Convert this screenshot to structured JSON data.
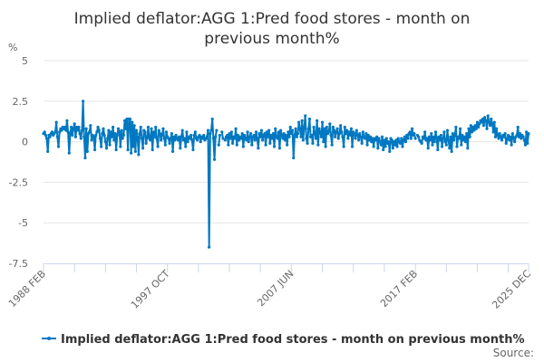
{
  "chart_data": {
    "type": "line",
    "title_lines": [
      "Implied deflator:AGG 1:Pred food stores - month on",
      "previous month%"
    ],
    "ylabel": "%",
    "ylim": [
      -7.5,
      5
    ],
    "y_ticks": [
      "5",
      "2.5",
      "0",
      "-2.5",
      "-5",
      "-7.5"
    ],
    "y_tick_values": [
      5,
      2.5,
      0,
      -2.5,
      -5,
      -7.5
    ],
    "x_start": "1988 FEB",
    "x_end": "2025 DEC",
    "frequency": "monthly",
    "x_tick_labels": [
      "1988 FEB",
      "1997 OCT",
      "2007 JUN",
      "2017 FEB",
      "2025 DEC"
    ],
    "grid": true,
    "legend_position": "bottom",
    "series": [
      {
        "name": "Implied deflator:AGG 1:Pred food stores - month on previous month%",
        "color": "#0078c1",
        "values": [
          0.5,
          0.6,
          0.4,
          0.2,
          -0.6,
          0.4,
          0.3,
          0.5,
          0.6,
          0.4,
          0.5,
          0.6,
          1.2,
          0.3,
          -0.3,
          0.6,
          0.8,
          0.7,
          0.9,
          0.8,
          0.9,
          0.7,
          1.3,
          0.6,
          -0.7,
          0.5,
          0.9,
          0.4,
          0.8,
          1.1,
          0.3,
          0.9,
          0.7,
          0.9,
          0.5,
          0.2,
          0.7,
          2.5,
          0.3,
          -1.0,
          0.8,
          -0.6,
          0.5,
          0.6,
          1.0,
          0.1,
          0.4,
          0.3,
          -0.5,
          0.4,
          0.6,
          0.9,
          0.7,
          0.2,
          -0.3,
          0.5,
          0.8,
          0.4,
          0.0,
          -0.4,
          0.2,
          0.7,
          -0.2,
          0.6,
          0.3,
          0.9,
          0.1,
          0.5,
          -0.5,
          0.4,
          0.8,
          0.6,
          -0.3,
          0.7,
          0.2,
          0.4,
          1.3,
          0.8,
          1.4,
          -0.5,
          1.4,
          1.4,
          -0.7,
          1.2,
          -0.3,
          1.0,
          -0.6,
          0.7,
          0.3,
          -0.8,
          0.5,
          0.9,
          0.2,
          -0.4,
          0.7,
          0.6,
          -0.1,
          0.3,
          0.9,
          0.2,
          0.1,
          0.8,
          -0.5,
          0.6,
          0.3,
          0.9,
          0.2,
          -0.3,
          0.7,
          0.5,
          0.1,
          0.4,
          0.8,
          0.2,
          -0.2,
          0.6,
          0.3,
          0.2,
          -0.1,
          0.2,
          0.5,
          -0.6,
          0.3,
          0.1,
          0.4,
          0.2,
          0.1,
          0.3,
          -0.4,
          0.3,
          0.7,
          0.1,
          0.2,
          -0.3,
          0.6,
          0.0,
          0.3,
          0.2,
          0.4,
          0.1,
          -0.5,
          0.4,
          0.6,
          0.2,
          0.1,
          0.3,
          0.4,
          0.0,
          0.3,
          0.2,
          0.4,
          0.1,
          0.2,
          0.3,
          0.7,
          -6.5,
          0.5,
          0.7,
          1.4,
          0.2,
          -1.1,
          0.3,
          0.7,
          null,
          -0.2,
          0.4,
          null,
          0.6,
          0.2,
          null,
          0.1,
          0.3,
          0.4,
          -0.2,
          0.5,
          0.2,
          0.6,
          -0.1,
          0.3,
          0.2,
          0.8,
          -0.2,
          0.4,
          0.1,
          0.3,
          0.2,
          0.5,
          -0.3,
          0.4,
          0.2,
          0.1,
          0.6,
          0.0,
          0.3,
          0.5,
          -0.2,
          0.3,
          0.4,
          0.1,
          0.6,
          0.2,
          -0.4,
          0.5,
          0.3,
          0.7,
          0.1,
          0.4,
          0.5,
          -0.2,
          0.6,
          0.3,
          0.7,
          -0.1,
          0.4,
          0.2,
          0.5,
          -0.3,
          0.8,
          0.3,
          0.2,
          0.6,
          -0.4,
          0.7,
          0.4,
          0.2,
          0.5,
          0.1,
          0.4,
          -0.2,
          0.6,
          0.3,
          0.9,
          0.5,
          0.7,
          -1.0,
          0.4,
          0.8,
          0.3,
          0.5,
          1.2,
          0.8,
          0.3,
          1.3,
          0.1,
          0.9,
          1.6,
          0.2,
          -0.1,
          0.8,
          1.4,
          0.3,
          0.4,
          -0.1,
          0.9,
          0.5,
          0.2,
          1.3,
          -0.2,
          0.8,
          0.6,
          0.3,
          1.2,
          0.0,
          0.8,
          -0.3,
          0.9,
          0.5,
          0.6,
          1.1,
          0.4,
          -0.2,
          0.9,
          0.7,
          0.3,
          0.6,
          0.8,
          0.2,
          0.5,
          1.0,
          0.6,
          0.3,
          -0.3,
          0.9,
          0.5,
          0.7,
          0.2,
          0.6,
          0.4,
          0.8,
          -0.3,
          0.6,
          0.5,
          0.2,
          0.7,
          0.4,
          0.1,
          0.5,
          0.3,
          -0.1,
          0.6,
          0.3,
          0.2,
          0.5,
          -0.2,
          0.4,
          0.1,
          0.3,
          0.0,
          0.2,
          -0.3,
          0.2,
          0.1,
          0.3,
          -0.4,
          0.2,
          0.0,
          -0.2,
          0.3,
          -0.5,
          0.1,
          -0.3,
          0.2,
          -0.1,
          0.0,
          -0.6,
          0.2,
          0.1,
          -0.4,
          0.0,
          -0.2,
          0.1,
          -0.3,
          0.2,
          0.0,
          -0.1,
          0.2,
          -0.3,
          0.1,
          0.3,
          0.0,
          0.4,
          0.2,
          0.5,
          0.6,
          0.2,
          0.8,
          0.4,
          0.5,
          0.2,
          null,
          0.4,
          0.3,
          0.1,
          0.0,
          -0.1,
          0.3,
          0.2,
          0.6,
          0.1,
          0.2,
          -0.4,
          0.3,
          0.1,
          0.5,
          -0.2,
          0.3,
          0.0,
          0.6,
          0.2,
          -0.5,
          0.3,
          0.1,
          0.4,
          -0.3,
          0.2,
          0.6,
          0.0,
          -0.2,
          0.7,
          0.1,
          -0.4,
          0.3,
          -0.6,
          0.5,
          0.1,
          0.4,
          0.9,
          -0.3,
          0.3,
          0.2,
          0.8,
          -0.2,
          0.4,
          0.1,
          0.3,
          0.0,
          0.5,
          -0.4,
          0.8,
          0.3,
          1.0,
          0.6,
          0.9,
          0.7,
          1.0,
          0.8,
          1.2,
          0.9,
          1.1,
          1.3,
          1.2,
          1.4,
          1.0,
          1.5,
          1.3,
          0.8,
          1.6,
          1.2,
          1.0,
          1.4,
          1.1,
          0.6,
          1.2,
          0.3,
          0.8,
          0.4,
          0.2,
          0.5,
          0.3,
          0.1,
          0.4,
          0.3,
          0.5,
          -0.1,
          0.2,
          0.4,
          0.1,
          0.3,
          -0.2,
          0.5,
          0.2,
          0.0,
          0.3,
          0.4,
          0.9,
          0.3,
          0.5,
          0.2,
          0.4,
          0.3,
          0.1,
          -0.2,
          0.6,
          -0.1,
          0.5
        ]
      }
    ],
    "source_label": "Source:"
  }
}
